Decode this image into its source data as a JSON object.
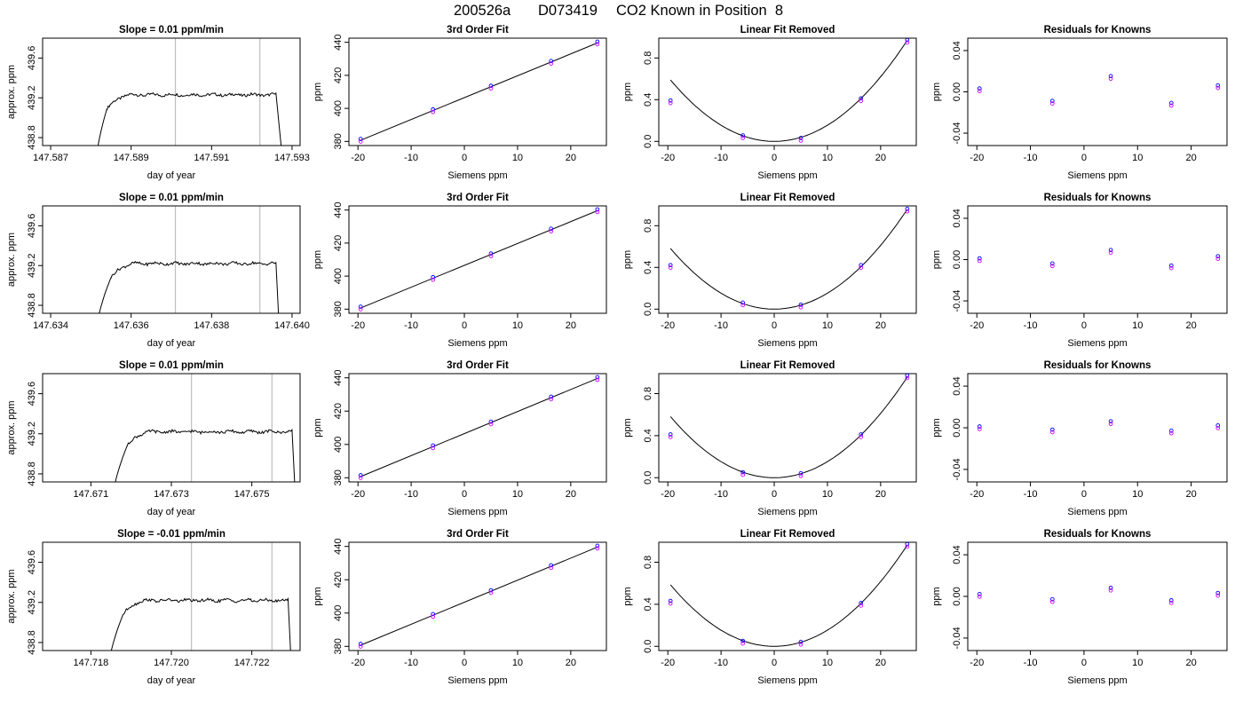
{
  "header": {
    "run_id": "200526a",
    "analyzer": "D073419",
    "description": "CO2 Known in Position  8"
  },
  "colors": {
    "trace": "#000000",
    "window_lines": "#bfbfbf",
    "points": "#0000ff",
    "points_alt": "#cc00ff",
    "highlight": "#ff0000"
  },
  "chart_data": [
    {
      "type": "line",
      "row": 1,
      "panel": "time-series",
      "title": "Slope =  0.01  ppm/min",
      "xlabel": "day of year",
      "ylabel": "approx. ppm",
      "xlim": [
        147.5868,
        147.5932
      ],
      "ylim": [
        438.72,
        439.8
      ],
      "xticks": [
        "147.587",
        "147.589",
        "147.591",
        "147.593"
      ],
      "yticks": [
        "438.8",
        "439.2",
        "439.6"
      ],
      "window_lines": [
        147.5901,
        147.5922
      ],
      "trace": {
        "rise_start": 147.5881,
        "rise_end": 147.5884,
        "plateau": 439.23,
        "fall_start": 147.5926,
        "fall_end": 147.5928
      }
    },
    {
      "type": "scatter",
      "row": 1,
      "panel": "fit",
      "title": "3rd Order Fit",
      "xlabel": "Siemens ppm",
      "ylabel": "ppm",
      "xlim": [
        -21.7,
        26.7
      ],
      "ylim": [
        377.5,
        442.5
      ],
      "xticks": [
        "-20",
        "-10",
        "0",
        "10",
        "20"
      ],
      "yticks": [
        "380",
        "400",
        "420",
        "440"
      ],
      "x": [
        -19.5,
        -5.9,
        5.0,
        16.3,
        25.0
      ],
      "y": [
        380.7,
        398.6,
        412.9,
        427.9,
        439.6
      ]
    },
    {
      "type": "scatter",
      "row": 1,
      "panel": "linear-removed",
      "title": "Linear Fit Removed",
      "xlabel": "Siemens ppm",
      "ylabel": "ppm",
      "xlim": [
        -21.7,
        26.7
      ],
      "ylim": [
        -0.04,
        0.99
      ],
      "xticks": [
        "-20",
        "-10",
        "0",
        "10",
        "20"
      ],
      "yticks": [
        "0.0",
        "0.4",
        "0.8"
      ],
      "x": [
        -19.5,
        -5.9,
        5.0,
        16.3,
        25.0
      ],
      "y": [
        0.38,
        0.045,
        0.02,
        0.4,
        0.96
      ],
      "curve": {
        "a": 0.00155,
        "b": 0,
        "c": 0
      }
    },
    {
      "type": "scatter",
      "row": 1,
      "panel": "residuals",
      "title": "Residuals for Knowns",
      "xlabel": "Siemens ppm",
      "ylabel": "ppm",
      "xlim": [
        -21.7,
        26.7
      ],
      "ylim": [
        -0.052,
        0.052
      ],
      "xticks": [
        "-20",
        "-10",
        "0",
        "10",
        "20"
      ],
      "yticks": [
        "-0.04",
        "0.00",
        "0.04"
      ],
      "x": [
        -19.5,
        -5.9,
        5.0,
        16.3,
        25.0
      ],
      "y": [
        0.002,
        -0.01,
        0.014,
        -0.012,
        0.005
      ]
    },
    {
      "type": "line",
      "row": 2,
      "panel": "time-series",
      "title": "Slope =  0.01  ppm/min",
      "xlabel": "day of year",
      "ylabel": "approx. ppm",
      "xlim": [
        147.6338,
        147.6402
      ],
      "ylim": [
        438.72,
        439.8
      ],
      "xticks": [
        "147.634",
        "147.636",
        "147.638",
        "147.640"
      ],
      "yticks": [
        "438.8",
        "439.2",
        "439.6"
      ],
      "window_lines": [
        147.6371,
        147.6392
      ],
      "trace": {
        "rise_start": 147.6351,
        "rise_end": 147.6355,
        "plateau": 439.22,
        "fall_start": 147.6396,
        "fall_end": 147.6397
      }
    },
    {
      "type": "scatter",
      "row": 2,
      "panel": "fit",
      "title": "3rd Order Fit",
      "xlabel": "Siemens ppm",
      "ylabel": "ppm",
      "xlim": [
        -21.7,
        26.7
      ],
      "ylim": [
        377.5,
        442.5
      ],
      "xticks": [
        "-20",
        "-10",
        "0",
        "10",
        "20"
      ],
      "yticks": [
        "380",
        "400",
        "420",
        "440"
      ],
      "x": [
        -19.5,
        -5.9,
        5.0,
        16.3,
        25.0
      ],
      "y": [
        380.7,
        398.6,
        412.9,
        427.9,
        439.6
      ]
    },
    {
      "type": "scatter",
      "row": 2,
      "panel": "linear-removed",
      "title": "Linear Fit Removed",
      "xlabel": "Siemens ppm",
      "ylabel": "ppm",
      "xlim": [
        -21.7,
        26.7
      ],
      "ylim": [
        -0.04,
        0.99
      ],
      "xticks": [
        "-20",
        "-10",
        "0",
        "10",
        "20"
      ],
      "yticks": [
        "0.0",
        "0.4",
        "0.8"
      ],
      "x": [
        -19.5,
        -5.9,
        5.0,
        16.3,
        25.0
      ],
      "y": [
        0.41,
        0.05,
        0.03,
        0.41,
        0.95
      ],
      "curve": {
        "a": 0.00153,
        "b": 0,
        "c": 0
      }
    },
    {
      "type": "scatter",
      "row": 2,
      "panel": "residuals",
      "title": "Residuals for Knowns",
      "xlabel": "Siemens ppm",
      "ylabel": "ppm",
      "xlim": [
        -21.7,
        26.7
      ],
      "ylim": [
        -0.052,
        0.052
      ],
      "xticks": [
        "-20",
        "-10",
        "0",
        "10",
        "20"
      ],
      "yticks": [
        "-0.04",
        "0.00",
        "0.04"
      ],
      "x": [
        -19.5,
        -5.9,
        5.0,
        16.3,
        25.0
      ],
      "y": [
        0.0,
        -0.005,
        0.008,
        -0.007,
        0.002
      ]
    },
    {
      "type": "line",
      "row": 3,
      "panel": "time-series",
      "title": "Slope =  0.01  ppm/min",
      "xlabel": "day of year",
      "ylabel": "approx. ppm",
      "xlim": [
        147.6698,
        147.6762
      ],
      "ylim": [
        438.72,
        439.8
      ],
      "xticks": [
        "147.671",
        "147.673",
        "147.675"
      ],
      "yticks": [
        "438.8",
        "439.2",
        "439.6"
      ],
      "window_lines": [
        147.6735,
        147.6755
      ],
      "trace": {
        "rise_start": 147.6715,
        "rise_end": 147.6719,
        "plateau": 439.22,
        "fall_start": 147.676,
        "fall_end": 147.6761
      }
    },
    {
      "type": "scatter",
      "row": 3,
      "panel": "fit",
      "title": "3rd Order Fit",
      "xlabel": "Siemens ppm",
      "ylabel": "ppm",
      "xlim": [
        -21.7,
        26.7
      ],
      "ylim": [
        377.5,
        442.5
      ],
      "xticks": [
        "-20",
        "-10",
        "0",
        "10",
        "20"
      ],
      "yticks": [
        "380",
        "400",
        "420",
        "440"
      ],
      "x": [
        -19.5,
        -5.9,
        5.0,
        16.3,
        25.0
      ],
      "y": [
        380.7,
        398.6,
        412.9,
        427.9,
        439.6
      ]
    },
    {
      "type": "scatter",
      "row": 3,
      "panel": "linear-removed",
      "title": "Linear Fit Removed",
      "xlabel": "Siemens ppm",
      "ylabel": "ppm",
      "xlim": [
        -21.7,
        26.7
      ],
      "ylim": [
        -0.04,
        0.99
      ],
      "xticks": [
        "-20",
        "-10",
        "0",
        "10",
        "20"
      ],
      "yticks": [
        "0.0",
        "0.4",
        "0.8"
      ],
      "x": [
        -19.5,
        -5.9,
        5.0,
        16.3,
        25.0
      ],
      "y": [
        0.4,
        0.04,
        0.03,
        0.4,
        0.96
      ],
      "curve": {
        "a": 0.00153,
        "b": 0,
        "c": 0
      }
    },
    {
      "type": "scatter",
      "row": 3,
      "panel": "residuals",
      "title": "Residuals for Knowns",
      "xlabel": "Siemens ppm",
      "ylabel": "ppm",
      "xlim": [
        -21.7,
        26.7
      ],
      "ylim": [
        -0.052,
        0.052
      ],
      "xticks": [
        "-20",
        "-10",
        "0",
        "10",
        "20"
      ],
      "yticks": [
        "-0.04",
        "0.00",
        "0.04"
      ],
      "x": [
        -19.5,
        -5.9,
        5.0,
        16.3,
        25.0
      ],
      "y": [
        0.0,
        -0.003,
        0.005,
        -0.004,
        0.001
      ]
    },
    {
      "type": "line",
      "row": 4,
      "panel": "time-series",
      "title": "Slope =  -0.01  ppm/min",
      "xlabel": "day of year",
      "ylabel": "approx. ppm",
      "xlim": [
        147.7168,
        147.7232
      ],
      "ylim": [
        438.72,
        439.8
      ],
      "xticks": [
        "147.718",
        "147.720",
        "147.722"
      ],
      "yticks": [
        "438.8",
        "439.2",
        "439.6"
      ],
      "window_lines": [
        147.7205,
        147.7225
      ],
      "trace": {
        "rise_start": 147.7184,
        "rise_end": 147.7188,
        "plateau": 439.22,
        "fall_start": 147.7229,
        "fall_end": 147.723
      }
    },
    {
      "type": "scatter",
      "row": 4,
      "panel": "fit",
      "title": "3rd Order Fit",
      "xlabel": "Siemens ppm",
      "ylabel": "ppm",
      "xlim": [
        -21.7,
        26.7
      ],
      "ylim": [
        377.5,
        442.5
      ],
      "xticks": [
        "-20",
        "-10",
        "0",
        "10",
        "20"
      ],
      "yticks": [
        "380",
        "400",
        "420",
        "440"
      ],
      "x": [
        -19.5,
        -5.9,
        5.0,
        16.3,
        25.0
      ],
      "y": [
        380.7,
        398.6,
        412.9,
        427.9,
        439.6
      ]
    },
    {
      "type": "scatter",
      "row": 4,
      "panel": "linear-removed",
      "title": "Linear Fit Removed",
      "xlabel": "Siemens ppm",
      "ylabel": "ppm",
      "xlim": [
        -21.7,
        26.7
      ],
      "ylim": [
        -0.04,
        0.99
      ],
      "xticks": [
        "-20",
        "-10",
        "0",
        "10",
        "20"
      ],
      "yticks": [
        "0.0",
        "0.4",
        "0.8"
      ],
      "x": [
        -19.5,
        -5.9,
        5.0,
        16.3,
        25.0
      ],
      "y": [
        0.42,
        0.04,
        0.03,
        0.4,
        0.96
      ],
      "curve": {
        "a": 0.00154,
        "b": 0,
        "c": 0
      }
    },
    {
      "type": "scatter",
      "row": 4,
      "panel": "residuals",
      "title": "Residuals for Knowns",
      "xlabel": "Siemens ppm",
      "ylabel": "ppm",
      "xlim": [
        -21.7,
        26.7
      ],
      "ylim": [
        -0.052,
        0.052
      ],
      "xticks": [
        "-20",
        "-10",
        "0",
        "10",
        "20"
      ],
      "yticks": [
        "-0.04",
        "0.00",
        "0.04"
      ],
      "x": [
        -19.5,
        -5.9,
        5.0,
        16.3,
        25.0
      ],
      "y": [
        0.001,
        -0.004,
        0.007,
        -0.005,
        0.002
      ]
    }
  ]
}
